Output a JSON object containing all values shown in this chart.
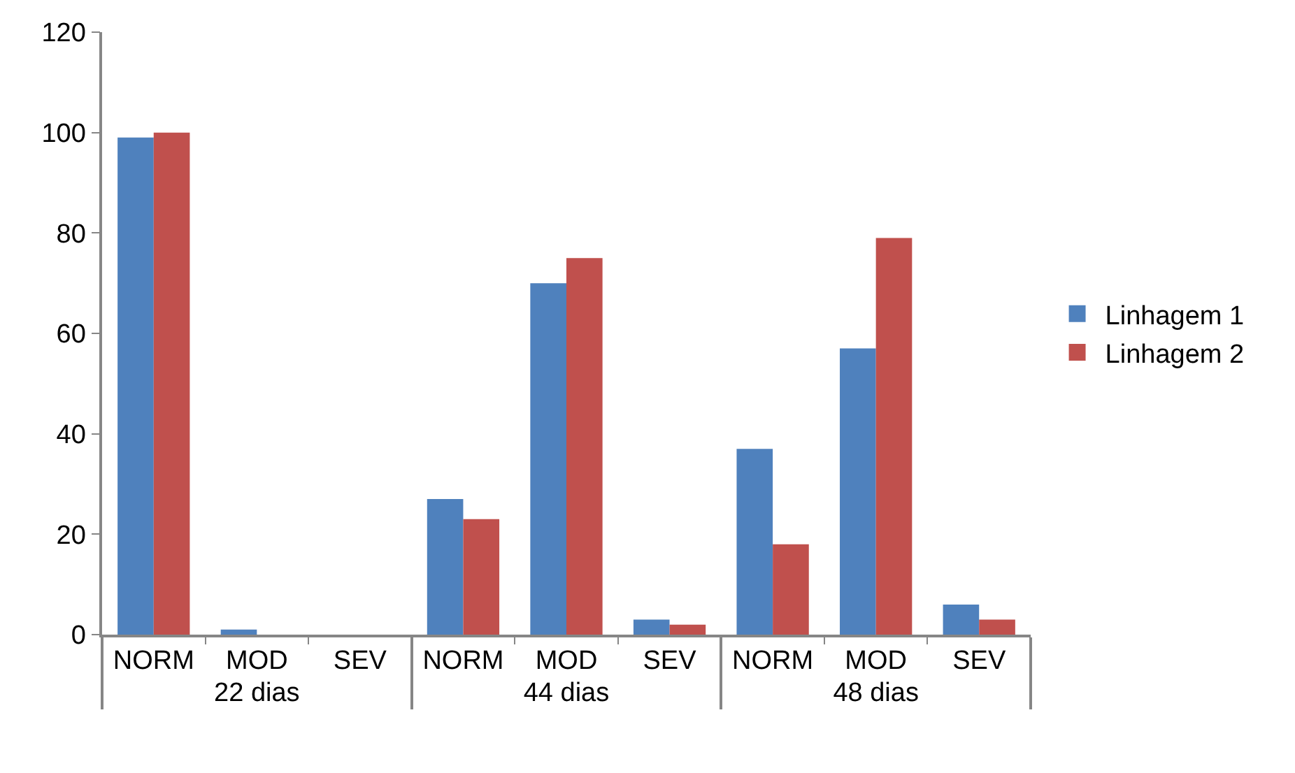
{
  "chart_data": {
    "type": "bar",
    "categories": [
      "NORM",
      "MOD",
      "SEV",
      "NORM",
      "MOD",
      "SEV",
      "NORM",
      "MOD",
      "SEV"
    ],
    "annotations": [
      "22 dias",
      "44 dias",
      "48 dias"
    ],
    "series": [
      {
        "name": "Linhagem 1",
        "color": "#4f81bd",
        "values": [
          99,
          1,
          0,
          27,
          70,
          3,
          37,
          57,
          6
        ]
      },
      {
        "name": "Linhagem 2",
        "color": "#c0504d",
        "values": [
          100,
          0,
          0,
          23,
          75,
          2,
          18,
          79,
          3
        ]
      }
    ],
    "ylim": [
      0,
      120
    ],
    "yticks": [
      0,
      20,
      40,
      60,
      80,
      100,
      120
    ],
    "legend": "right"
  }
}
